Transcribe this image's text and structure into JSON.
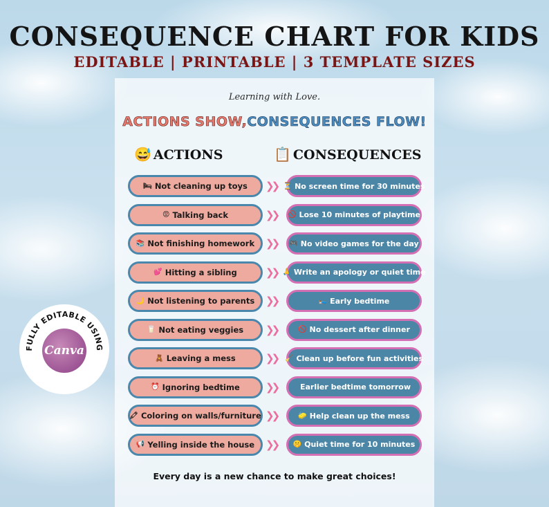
{
  "header": {
    "title": "CONSEQUENCE CHART FOR KIDS",
    "subtitle": "EDITABLE | PRINTABLE | 3 TEMPLATE SIZES"
  },
  "sheet": {
    "tagline": "Learning with Love.",
    "headline_part1": "ACTIONS SHOW,",
    "headline_part2": "CONSEQUENCES FLOW!",
    "actions_header": "ACTIONS",
    "consequences_header": "CONSEQUENCES",
    "actions_icon": "😅",
    "consequences_icon": "📋",
    "footer": "Every day is a new chance to make great choices!"
  },
  "rows": [
    {
      "action_icon": "🛏",
      "action": "Not cleaning up toys",
      "consequence_icon": "⏳",
      "consequence": "No screen time for 30 minutes"
    },
    {
      "action_icon": "😡",
      "action": "Talking back",
      "consequence_icon": "🚫",
      "consequence": "Lose 10 minutes of playtime"
    },
    {
      "action_icon": "📚",
      "action": "Not finishing homework",
      "consequence_icon": "🎮",
      "consequence": "No video games for the day"
    },
    {
      "action_icon": "💕",
      "action": "Hitting a sibling",
      "consequence_icon": "🙏",
      "consequence": "Write an apology or quiet time"
    },
    {
      "action_icon": "🌙",
      "action": "Not listening to parents",
      "consequence_icon": "🛌",
      "consequence": "Early bedtime"
    },
    {
      "action_icon": "🥛",
      "action": "Not eating veggies",
      "consequence_icon": "🚫",
      "consequence": "No dessert after dinner"
    },
    {
      "action_icon": "🧸",
      "action": "Leaving a mess",
      "consequence_icon": "🧹",
      "consequence": "Clean up before fun activities"
    },
    {
      "action_icon": "⏰",
      "action": "Ignoring bedtime",
      "consequence_icon": "",
      "consequence": "Earlier bedtime tomorrow"
    },
    {
      "action_icon": "🖍",
      "action": "Coloring on walls/furniture",
      "consequence_icon": "🧽",
      "consequence": "Help clean up the mess"
    },
    {
      "action_icon": "📢",
      "action": "Yelling inside the house",
      "consequence_icon": "🤫",
      "consequence": "Quiet time for 10 minutes"
    }
  ],
  "badge": {
    "ring_text": "FULLY EDITABLE USING",
    "logo_text": "Canva"
  }
}
